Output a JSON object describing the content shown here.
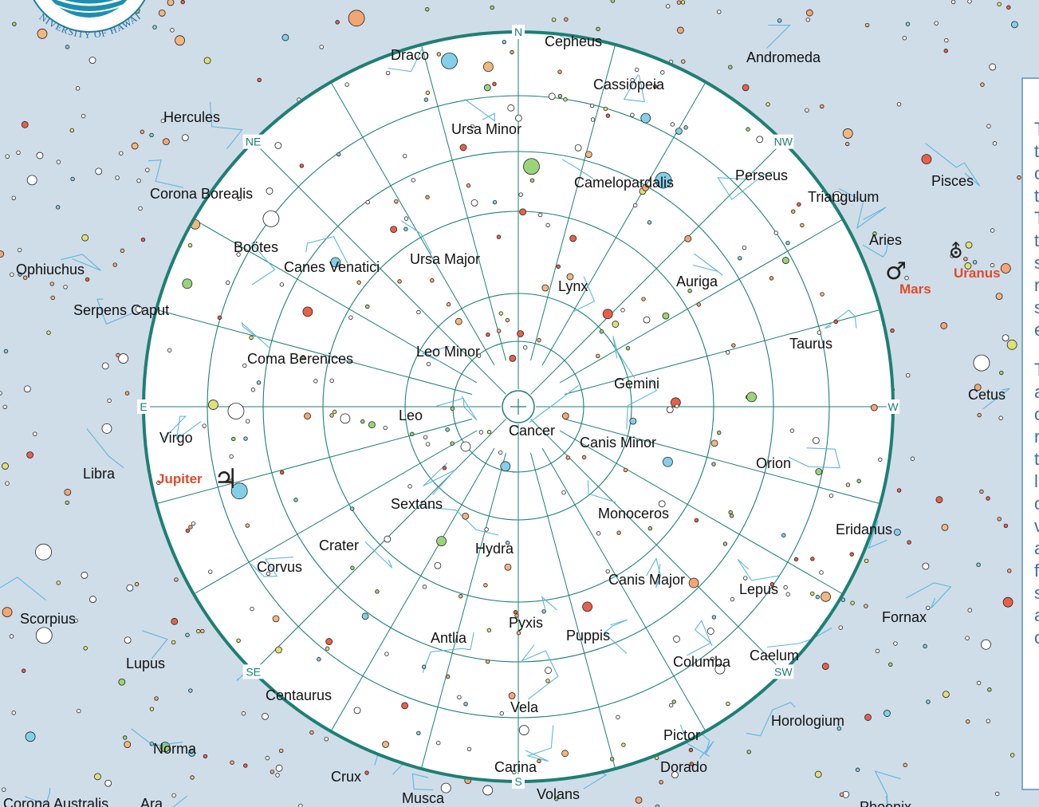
{
  "colors": {
    "background": "#cfdde8",
    "sky_disc": "#ffffff",
    "horizon_ring": "#1e7f74",
    "grid": "#1e7f74",
    "constellation_lines": "#5eb6de",
    "planet_label": "#e04a2a",
    "panel_border": "#7ea7cf",
    "panel_text": "#2f6fb3"
  },
  "logo": {
    "text": "UNIVERSITY OF HAWAI'I",
    "icon": "university-seal-icon"
  },
  "directions": [
    {
      "id": "n",
      "label": "N",
      "angle_deg": 90
    },
    {
      "id": "ne",
      "label": "NE",
      "angle_deg": 135
    },
    {
      "id": "e",
      "label": "E",
      "angle_deg": 180
    },
    {
      "id": "se",
      "label": "SE",
      "angle_deg": 225
    },
    {
      "id": "s",
      "label": "S",
      "angle_deg": 270
    },
    {
      "id": "sw",
      "label": "SW",
      "angle_deg": 315
    },
    {
      "id": "w",
      "label": "W",
      "angle_deg": 0
    },
    {
      "id": "nw",
      "label": "NW",
      "angle_deg": 45
    }
  ],
  "constellations": [
    {
      "id": "cepheus",
      "label": "Cepheus"
    },
    {
      "id": "draco",
      "label": "Draco"
    },
    {
      "id": "andromeda",
      "label": "Andromeda"
    },
    {
      "id": "cassiopeia",
      "label": "Cassiopeia"
    },
    {
      "id": "hercules",
      "label": "Hercules"
    },
    {
      "id": "ursa-minor",
      "label": "Ursa Minor"
    },
    {
      "id": "perseus",
      "label": "Perseus"
    },
    {
      "id": "pisces",
      "label": "Pisces"
    },
    {
      "id": "camelopardalis",
      "label": "Camelopardalis"
    },
    {
      "id": "triangulum",
      "label": "Triangulum"
    },
    {
      "id": "corona-borealis",
      "label": "Corona Borealis"
    },
    {
      "id": "aries",
      "label": "Aries"
    },
    {
      "id": "ophiuchus",
      "label": "Ophiuchus"
    },
    {
      "id": "bootes",
      "label": "Boötes"
    },
    {
      "id": "canes-venatici",
      "label": "Canes Venatici"
    },
    {
      "id": "ursa-major",
      "label": "Ursa Major"
    },
    {
      "id": "auriga",
      "label": "Auriga"
    },
    {
      "id": "lynx",
      "label": "Lynx"
    },
    {
      "id": "serpens-caput",
      "label": "Serpens Caput"
    },
    {
      "id": "taurus",
      "label": "Taurus"
    },
    {
      "id": "leo-minor",
      "label": "Leo Minor"
    },
    {
      "id": "coma-berenices",
      "label": "Coma Berenices"
    },
    {
      "id": "gemini",
      "label": "Gemini"
    },
    {
      "id": "cetus",
      "label": "Cetus"
    },
    {
      "id": "leo",
      "label": "Leo"
    },
    {
      "id": "virgo",
      "label": "Virgo"
    },
    {
      "id": "cancer",
      "label": "Cancer"
    },
    {
      "id": "canis-minor",
      "label": "Canis Minor"
    },
    {
      "id": "orion",
      "label": "Orion"
    },
    {
      "id": "libra",
      "label": "Libra"
    },
    {
      "id": "sextans",
      "label": "Sextans"
    },
    {
      "id": "monoceros",
      "label": "Monoceros"
    },
    {
      "id": "eridanus",
      "label": "Eridanus"
    },
    {
      "id": "crater",
      "label": "Crater"
    },
    {
      "id": "hydra",
      "label": "Hydra"
    },
    {
      "id": "corvus",
      "label": "Corvus"
    },
    {
      "id": "canis-major",
      "label": "Canis Major"
    },
    {
      "id": "lepus",
      "label": "Lepus"
    },
    {
      "id": "scorpius",
      "label": "Scorpius"
    },
    {
      "id": "fornax",
      "label": "Fornax"
    },
    {
      "id": "pyxis",
      "label": "Pyxis"
    },
    {
      "id": "antlia",
      "label": "Antlia"
    },
    {
      "id": "puppis",
      "label": "Puppis"
    },
    {
      "id": "lupus",
      "label": "Lupus"
    },
    {
      "id": "caelum",
      "label": "Caelum"
    },
    {
      "id": "columba",
      "label": "Columba"
    },
    {
      "id": "centaurus",
      "label": "Centaurus"
    },
    {
      "id": "vela",
      "label": "Vela"
    },
    {
      "id": "horologium",
      "label": "Horologium"
    },
    {
      "id": "norma",
      "label": "Norma"
    },
    {
      "id": "pictor",
      "label": "Pictor"
    },
    {
      "id": "carina",
      "label": "Carina"
    },
    {
      "id": "dorado",
      "label": "Dorado"
    },
    {
      "id": "crux",
      "label": "Crux"
    },
    {
      "id": "corona-australis",
      "label": "Corona Australis"
    },
    {
      "id": "ara",
      "label": "Ara"
    },
    {
      "id": "musca",
      "label": "Musca"
    },
    {
      "id": "volans",
      "label": "Volans"
    },
    {
      "id": "phoenix",
      "label": "Phoenix"
    }
  ],
  "planets": [
    {
      "id": "jupiter",
      "label": "Jupiter",
      "symbol": "♃"
    },
    {
      "id": "mars",
      "label": "Mars",
      "symbol": "♂"
    },
    {
      "id": "uranus",
      "label": "Uranus",
      "symbol": "⛢"
    }
  ],
  "side_panel": {
    "fragments": [
      "T",
      "t",
      "c",
      "t",
      "T",
      "t",
      "s",
      "r",
      "s",
      "e",
      "T",
      "a",
      "c",
      "r",
      "t",
      "l",
      "c",
      "v",
      "a",
      "f",
      "s",
      "a",
      "c"
    ]
  }
}
